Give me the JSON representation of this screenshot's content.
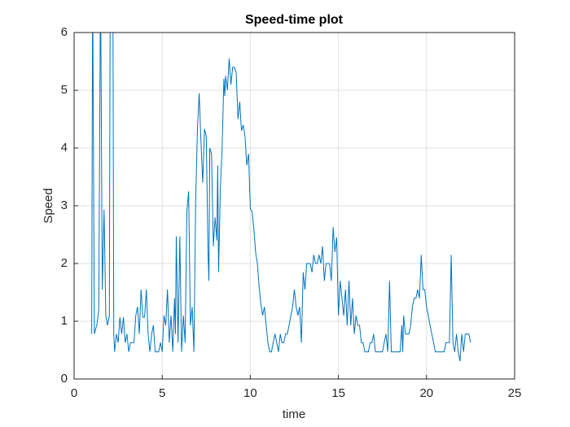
{
  "chart_data": {
    "type": "line",
    "title": "Speed-time plot",
    "xlabel": "time",
    "ylabel": "Speed",
    "xlim": [
      0,
      25
    ],
    "ylim": [
      0,
      6
    ],
    "xticks": [
      0,
      5,
      10,
      15,
      20,
      25
    ],
    "yticks": [
      0,
      1,
      2,
      3,
      4,
      5,
      6
    ],
    "grid": true,
    "series": [
      {
        "color": "#0072bd",
        "x": [
          1.0,
          1.05,
          1.15,
          1.3,
          1.4,
          1.5,
          1.6,
          1.7,
          1.8,
          1.9,
          2.0,
          2.05,
          2.2,
          2.25,
          2.3,
          2.4,
          2.5,
          2.6,
          2.7,
          2.8,
          2.9,
          3.0,
          3.1,
          3.2,
          3.4,
          3.5,
          3.6,
          3.7,
          3.8,
          3.9,
          4.0,
          4.1,
          4.2,
          4.3,
          4.4,
          4.5,
          4.6,
          4.8,
          4.9,
          5.0,
          5.1,
          5.2,
          5.3,
          5.4,
          5.5,
          5.6,
          5.7,
          5.75,
          5.8,
          5.9,
          6.0,
          6.1,
          6.2,
          6.3,
          6.4,
          6.5,
          6.6,
          6.7,
          6.8,
          6.9,
          7.0,
          7.1,
          7.2,
          7.3,
          7.4,
          7.5,
          7.6,
          7.65,
          7.7,
          7.8,
          7.9,
          8.0,
          8.1,
          8.15,
          8.2,
          8.3,
          8.4,
          8.5,
          8.55,
          8.6,
          8.7,
          8.8,
          8.9,
          9.0,
          9.1,
          9.2,
          9.3,
          9.4,
          9.5,
          9.6,
          9.7,
          9.8,
          9.9,
          10.0,
          10.1,
          10.2,
          10.3,
          10.4,
          10.5,
          10.6,
          10.7,
          10.8,
          10.9,
          11.0,
          11.1,
          11.2,
          11.3,
          11.4,
          11.5,
          11.6,
          11.7,
          11.8,
          11.9,
          12.0,
          12.1,
          12.2,
          12.3,
          12.4,
          12.5,
          12.6,
          12.7,
          12.8,
          12.9,
          13.0,
          13.1,
          13.2,
          13.3,
          13.4,
          13.5,
          13.6,
          13.7,
          13.8,
          13.9,
          14.0,
          14.1,
          14.2,
          14.3,
          14.4,
          14.5,
          14.6,
          14.7,
          14.8,
          14.9,
          15.0,
          15.1,
          15.2,
          15.3,
          15.4,
          15.5,
          15.6,
          15.7,
          15.8,
          15.9,
          16.0,
          16.1,
          16.2,
          16.3,
          16.4,
          16.5,
          16.7,
          16.8,
          16.9,
          17.0,
          17.1,
          17.5,
          17.6,
          17.7,
          17.8,
          17.9,
          18.0,
          18.5,
          18.6,
          18.65,
          18.7,
          18.8,
          19.0,
          19.1,
          19.2,
          19.3,
          19.4,
          19.5,
          19.6,
          19.7,
          19.8,
          19.9,
          20.0,
          20.1,
          20.2,
          20.3,
          20.4,
          20.5,
          21.0,
          21.1,
          21.3,
          21.4,
          21.5,
          21.6,
          21.7,
          21.8,
          21.9,
          22.0,
          22.1,
          22.2,
          22.4,
          22.5
        ],
        "values": [
          0.78,
          7,
          0.78,
          0.95,
          1.2,
          7,
          1.55,
          2.93,
          1.1,
          0.93,
          1.1,
          7,
          7,
          0.78,
          0.47,
          0.78,
          0.63,
          1.07,
          0.78,
          1.07,
          0.63,
          0.78,
          0.47,
          0.63,
          0.63,
          1.1,
          1.25,
          0.78,
          1.55,
          1.07,
          1.07,
          1.55,
          0.78,
          0.47,
          0.78,
          0.93,
          0.47,
          0.47,
          0.63,
          0.47,
          1.1,
          0.93,
          1.55,
          0.63,
          1.1,
          0.47,
          1.4,
          0.78,
          2.47,
          0.63,
          2.47,
          0.47,
          1.1,
          0.63,
          2.9,
          3.25,
          0.93,
          1.25,
          0.47,
          3.1,
          4.33,
          4.95,
          4.1,
          3.4,
          4.33,
          4.2,
          2.2,
          1.7,
          4.0,
          3.9,
          2.3,
          2.8,
          2.4,
          3.7,
          1.85,
          3.3,
          4.0,
          5.2,
          4.9,
          5.25,
          5.0,
          5.55,
          5.1,
          5.4,
          5.4,
          5.3,
          4.5,
          4.8,
          4.3,
          4.4,
          4.2,
          3.7,
          3.9,
          2.95,
          2.9,
          2.6,
          2.2,
          2.0,
          1.6,
          1.3,
          1.1,
          1.25,
          0.93,
          0.63,
          0.47,
          0.47,
          0.63,
          0.78,
          0.63,
          0.47,
          0.78,
          0.63,
          0.63,
          0.78,
          0.78,
          0.93,
          1.1,
          1.25,
          1.55,
          1.25,
          1.1,
          1.25,
          0.63,
          1.85,
          1.55,
          2.0,
          2.0,
          2.0,
          1.85,
          2.15,
          2.0,
          2.0,
          2.15,
          2.0,
          2.3,
          1.7,
          2.0,
          2.0,
          2.0,
          1.7,
          2.63,
          2.2,
          2.45,
          1.1,
          1.7,
          1.4,
          1.1,
          1.55,
          0.93,
          1.7,
          0.93,
          1.4,
          0.78,
          1.1,
          0.93,
          0.93,
          0.63,
          0.63,
          0.47,
          0.47,
          0.63,
          0.63,
          0.78,
          0.47,
          0.47,
          0.63,
          0.78,
          0.47,
          1.7,
          0.47,
          0.47,
          0.93,
          0.47,
          1.1,
          0.78,
          0.78,
          0.93,
          1.25,
          1.4,
          1.4,
          1.55,
          1.4,
          2.15,
          1.55,
          1.55,
          1.25,
          1.1,
          0.93,
          0.78,
          0.63,
          0.47,
          0.47,
          0.63,
          0.63,
          2.15,
          0.63,
          0.47,
          0.78,
          0.47,
          0.31,
          0.78,
          0.47,
          0.78,
          0.78,
          0.63
        ]
      }
    ]
  }
}
